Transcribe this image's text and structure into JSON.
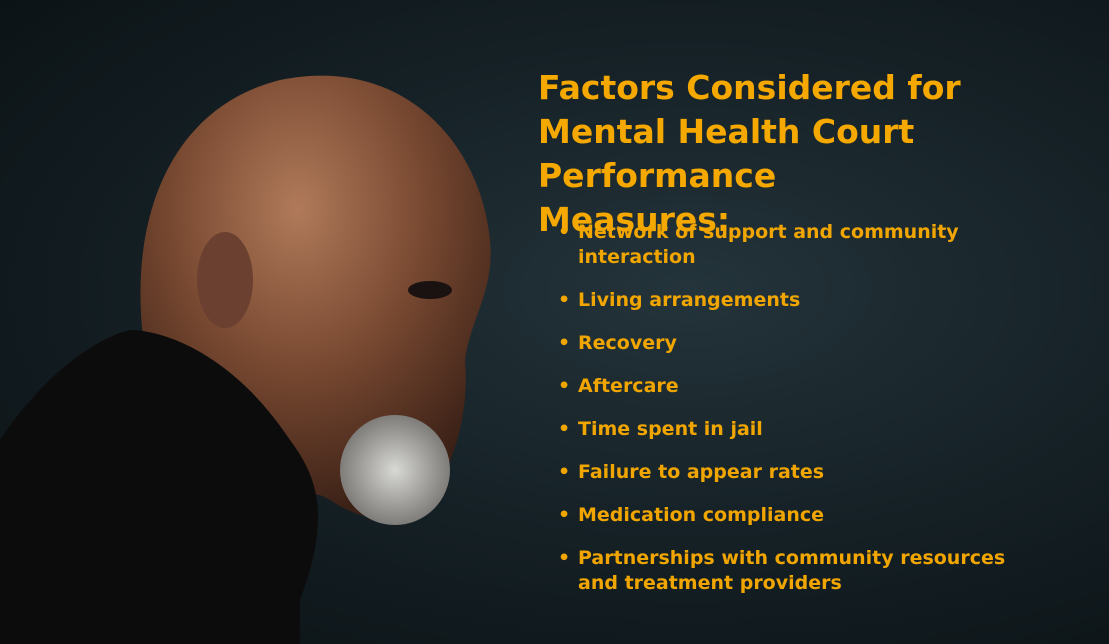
{
  "slide": {
    "title": "Factors Considered for Mental Health Court Performance Measures:",
    "bullets": [
      "Network of support and community interaction",
      "Living arrangements",
      "Recovery",
      "Aftercare",
      "Time spent in jail",
      "Failure to appear rates",
      "Medication compliance",
      "Partnerships with community resources and treatment providers"
    ]
  }
}
